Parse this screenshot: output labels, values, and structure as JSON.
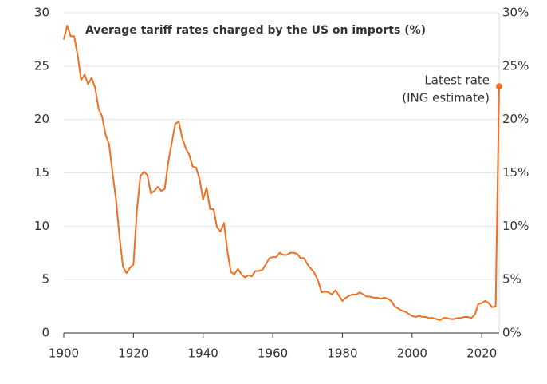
{
  "chart_data": {
    "type": "line",
    "title": "Average tariff rates charged by the US on imports (%)",
    "annotation": [
      "Latest rate",
      "(ING estimate)"
    ],
    "color": "#f26f21",
    "x": [
      1900,
      1901,
      1902,
      1903,
      1904,
      1905,
      1906,
      1907,
      1908,
      1909,
      1910,
      1911,
      1912,
      1913,
      1914,
      1915,
      1916,
      1917,
      1918,
      1919,
      1920,
      1921,
      1922,
      1923,
      1924,
      1925,
      1926,
      1927,
      1928,
      1929,
      1930,
      1931,
      1932,
      1933,
      1934,
      1935,
      1936,
      1937,
      1938,
      1939,
      1940,
      1941,
      1942,
      1943,
      1944,
      1945,
      1946,
      1947,
      1948,
      1949,
      1950,
      1951,
      1952,
      1953,
      1954,
      1955,
      1956,
      1957,
      1958,
      1959,
      1960,
      1961,
      1962,
      1963,
      1964,
      1965,
      1966,
      1967,
      1968,
      1969,
      1970,
      1971,
      1972,
      1973,
      1974,
      1975,
      1976,
      1977,
      1978,
      1979,
      1980,
      1981,
      1982,
      1983,
      1984,
      1985,
      1986,
      1987,
      1988,
      1989,
      1990,
      1991,
      1992,
      1993,
      1994,
      1995,
      1996,
      1997,
      1998,
      1999,
      2000,
      2001,
      2002,
      2003,
      2004,
      2005,
      2006,
      2007,
      2008,
      2009,
      2010,
      2011,
      2012,
      2013,
      2014,
      2015,
      2016,
      2017,
      2018,
      2019,
      2020,
      2021,
      2022,
      2023,
      2024,
      2025
    ],
    "values": [
      27.5,
      28.8,
      27.8,
      27.8,
      26,
      23.7,
      24.2,
      23.3,
      23.9,
      23,
      21,
      20.3,
      18.6,
      17.7,
      15,
      12.5,
      9,
      6.2,
      5.6,
      6.1,
      6.4,
      11.5,
      14.7,
      15.1,
      14.8,
      13.1,
      13.3,
      13.7,
      13.3,
      13.5,
      16.0,
      17.8,
      19.6,
      19.8,
      18.3,
      17.3,
      16.7,
      15.6,
      15.5,
      14.4,
      12.5,
      13.6,
      11.6,
      11.6,
      9.9,
      9.5,
      10.3,
      7.6,
      5.7,
      5.5,
      6.0,
      5.5,
      5.2,
      5.4,
      5.3,
      5.8,
      5.8,
      5.9,
      6.4,
      7.0,
      7.1,
      7.1,
      7.5,
      7.3,
      7.3,
      7.5,
      7.5,
      7.4,
      7.0,
      7.0,
      6.4,
      6.0,
      5.6,
      4.9,
      3.8,
      3.9,
      3.8,
      3.6,
      4.0,
      3.5,
      3.0,
      3.3,
      3.5,
      3.6,
      3.6,
      3.8,
      3.6,
      3.4,
      3.4,
      3.3,
      3.3,
      3.2,
      3.3,
      3.2,
      3.0,
      2.5,
      2.3,
      2.1,
      2.0,
      1.8,
      1.6,
      1.5,
      1.6,
      1.5,
      1.5,
      1.4,
      1.4,
      1.3,
      1.2,
      1.4,
      1.4,
      1.3,
      1.3,
      1.4,
      1.4,
      1.5,
      1.5,
      1.4,
      1.7,
      2.7,
      2.8,
      3.0,
      2.8,
      2.4,
      2.5,
      23.1
    ],
    "xlim": [
      1900,
      2025
    ],
    "xticks": [
      1900,
      1920,
      1940,
      1960,
      1980,
      2000,
      2020
    ],
    "ylim": [
      0,
      30
    ],
    "yticks": [
      0,
      5,
      10,
      15,
      20,
      25,
      30
    ],
    "y2lim": [
      0,
      30
    ],
    "y2ticks": [
      {
        "value": 0,
        "label": "0%"
      },
      {
        "value": 5,
        "label": "5%"
      },
      {
        "value": 10,
        "label": "10%"
      },
      {
        "value": 15,
        "label": "15%"
      },
      {
        "value": 20,
        "label": "20%"
      },
      {
        "value": 25,
        "label": "25%"
      },
      {
        "value": 30,
        "label": "30%"
      }
    ],
    "grid": true
  }
}
